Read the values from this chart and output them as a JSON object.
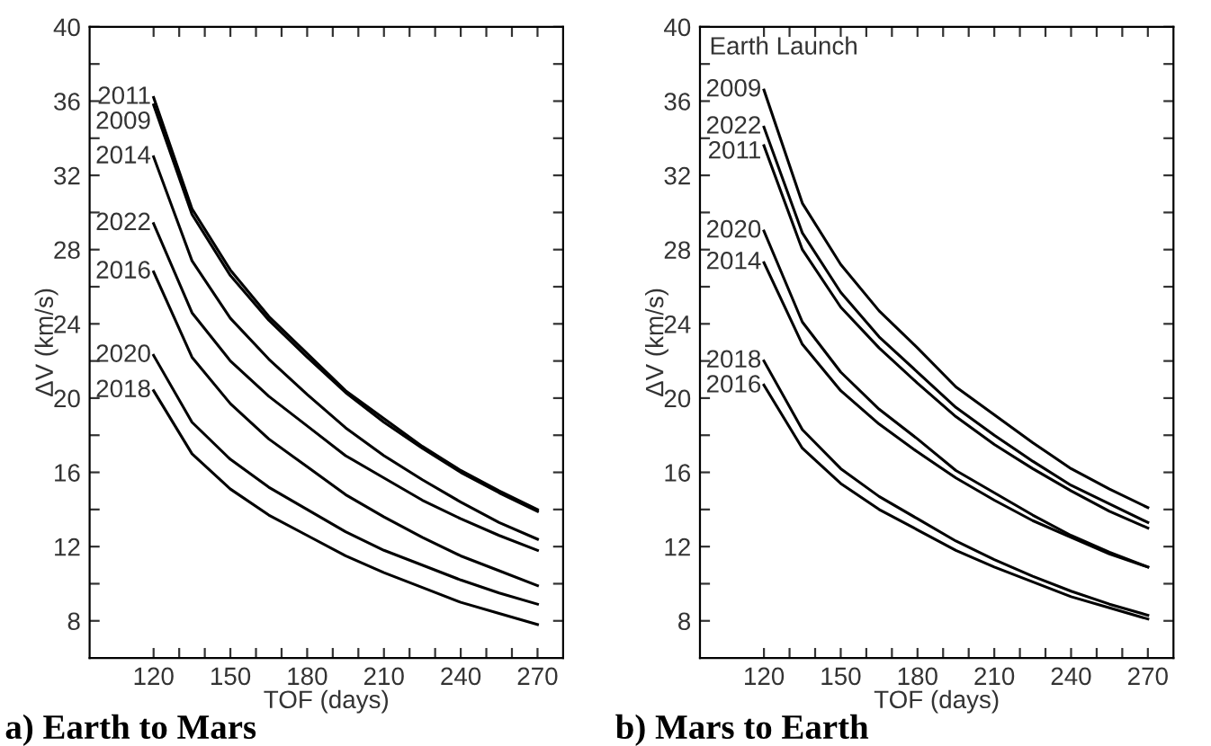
{
  "chart_data": [
    {
      "type": "line",
      "title": "a) Earth to Mars",
      "xlabel": "TOF (days)",
      "ylabel": "ΔV (km/s)",
      "x": [
        120,
        135,
        150,
        165,
        180,
        195,
        210,
        225,
        240,
        255,
        270
      ],
      "xlim": [
        95,
        280
      ],
      "ylim": [
        6,
        40
      ],
      "xticks": [
        120,
        {
          "value": 130,
          "label": null
        },
        {
          "value": 140,
          "label": null
        },
        150,
        {
          "value": 160,
          "label": null
        },
        {
          "value": 170,
          "label": null
        },
        180,
        {
          "value": 190,
          "label": null
        },
        {
          "value": 200,
          "label": null
        },
        210,
        {
          "value": 220,
          "label": null
        },
        {
          "value": 230,
          "label": null
        },
        240,
        {
          "value": 250,
          "label": null
        },
        {
          "value": 260,
          "label": null
        },
        270
      ],
      "yticks": [
        8,
        {
          "value": 10,
          "label": null
        },
        12,
        {
          "value": 14,
          "label": null
        },
        16,
        {
          "value": 18,
          "label": null
        },
        20,
        {
          "value": 22,
          "label": null
        },
        24,
        {
          "value": 26,
          "label": null
        },
        28,
        {
          "value": 30,
          "label": null
        },
        32,
        {
          "value": 34,
          "label": null
        },
        36,
        {
          "value": 38,
          "label": null
        },
        40
      ],
      "series": [
        {
          "name": "2011",
          "color": "#000000",
          "values": [
            36.2,
            30.2,
            26.9,
            24.4,
            22.4,
            20.4,
            18.9,
            17.4,
            16.1,
            15.0,
            14.0
          ]
        },
        {
          "name": "2009",
          "color": "#000000",
          "values": [
            35.8,
            29.9,
            26.6,
            24.2,
            22.2,
            20.3,
            18.7,
            17.3,
            16.0,
            14.9,
            13.9
          ]
        },
        {
          "name": "2014",
          "color": "#000000",
          "values": [
            33.0,
            27.4,
            24.3,
            22.1,
            20.2,
            18.4,
            16.9,
            15.6,
            14.4,
            13.3,
            12.4
          ]
        },
        {
          "name": "2022",
          "color": "#000000",
          "values": [
            29.4,
            24.6,
            22.0,
            20.1,
            18.5,
            16.9,
            15.7,
            14.5,
            13.5,
            12.6,
            11.8
          ]
        },
        {
          "name": "2016",
          "color": "#000000",
          "values": [
            26.8,
            22.2,
            19.7,
            17.8,
            16.3,
            14.8,
            13.6,
            12.5,
            11.5,
            10.7,
            9.9
          ]
        },
        {
          "name": "2020",
          "color": "#000000",
          "values": [
            22.3,
            18.7,
            16.7,
            15.2,
            14.0,
            12.8,
            11.8,
            11.0,
            10.2,
            9.5,
            8.9
          ]
        },
        {
          "name": "2018",
          "color": "#000000",
          "values": [
            20.4,
            17.0,
            15.1,
            13.7,
            12.6,
            11.5,
            10.6,
            9.8,
            9.0,
            8.4,
            7.8
          ]
        }
      ]
    },
    {
      "type": "line",
      "title": "b) Mars to Earth",
      "xlabel": "TOF (days)",
      "ylabel": "ΔV (km/s)",
      "annotations": [
        "Earth Launch"
      ],
      "x": [
        120,
        135,
        150,
        165,
        180,
        195,
        210,
        225,
        240,
        255,
        270
      ],
      "xlim": [
        95,
        280
      ],
      "ylim": [
        6,
        40
      ],
      "xticks": [
        120,
        {
          "value": 130,
          "label": null
        },
        {
          "value": 140,
          "label": null
        },
        150,
        {
          "value": 160,
          "label": null
        },
        {
          "value": 170,
          "label": null
        },
        180,
        {
          "value": 190,
          "label": null
        },
        {
          "value": 200,
          "label": null
        },
        210,
        {
          "value": 220,
          "label": null
        },
        {
          "value": 230,
          "label": null
        },
        240,
        {
          "value": 250,
          "label": null
        },
        {
          "value": 260,
          "label": null
        },
        270
      ],
      "yticks": [
        8,
        {
          "value": 10,
          "label": null
        },
        12,
        {
          "value": 14,
          "label": null
        },
        16,
        {
          "value": 18,
          "label": null
        },
        20,
        {
          "value": 22,
          "label": null
        },
        24,
        {
          "value": 26,
          "label": null
        },
        28,
        {
          "value": 30,
          "label": null
        },
        32,
        {
          "value": 34,
          "label": null
        },
        36,
        {
          "value": 38,
          "label": null
        },
        40
      ],
      "series": [
        {
          "name": "2009",
          "color": "#000000",
          "values": [
            36.6,
            30.5,
            27.2,
            24.7,
            22.7,
            20.6,
            19.1,
            17.6,
            16.2,
            15.1,
            14.1
          ]
        },
        {
          "name": "2022",
          "color": "#000000",
          "values": [
            34.6,
            28.9,
            25.7,
            23.3,
            21.4,
            19.5,
            18.0,
            16.6,
            15.3,
            14.3,
            13.3
          ]
        },
        {
          "name": "2011",
          "color": "#000000",
          "values": [
            33.6,
            28.0,
            24.9,
            22.7,
            20.8,
            19.0,
            17.5,
            16.2,
            15.0,
            13.9,
            13.0
          ]
        },
        {
          "name": "2020",
          "color": "#000000",
          "values": [
            29.0,
            24.1,
            21.4,
            19.4,
            17.8,
            16.1,
            14.9,
            13.7,
            12.6,
            11.7,
            10.9
          ]
        },
        {
          "name": "2014",
          "color": "#000000",
          "values": [
            27.3,
            22.9,
            20.4,
            18.6,
            17.1,
            15.7,
            14.5,
            13.4,
            12.5,
            11.6,
            10.9
          ]
        },
        {
          "name": "2018",
          "color": "#000000",
          "values": [
            22.0,
            18.3,
            16.2,
            14.7,
            13.5,
            12.3,
            11.3,
            10.4,
            9.6,
            8.9,
            8.3
          ]
        },
        {
          "name": "2016",
          "color": "#000000",
          "values": [
            20.7,
            17.3,
            15.4,
            14.0,
            12.9,
            11.8,
            10.9,
            10.1,
            9.3,
            8.7,
            8.1
          ]
        }
      ]
    }
  ]
}
